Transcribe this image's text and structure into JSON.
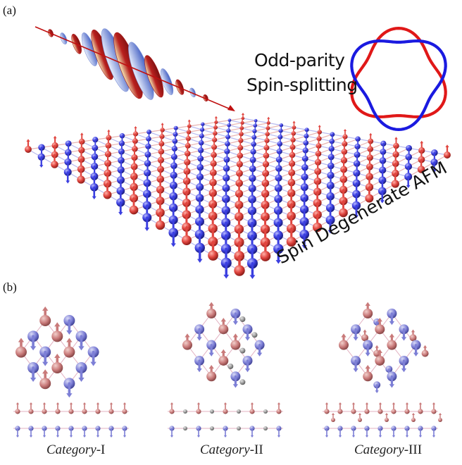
{
  "panel_a": {
    "label": "(a)",
    "annotation_line1": "Odd-parity",
    "annotation_line2": "Spin-splitting",
    "lattice_label": "Spin Degenerate AFM"
  },
  "panel_b": {
    "label": "(b)",
    "categories": [
      {
        "italic": "Category",
        "suffix": "-I"
      },
      {
        "italic": "Category",
        "suffix": "-II"
      },
      {
        "italic": "Category",
        "suffix": "-III"
      }
    ]
  },
  "colors": {
    "spin_up": "#e0453f",
    "spin_down": "#3b3fe0",
    "pale_up": "#c97a7a",
    "pale_down": "#7d7fd6",
    "nonmagnetic": "#9a9a9a",
    "pulse_red": "#a51c1c",
    "pulse_yellow": "#e8d99a",
    "pulse_blue": "#4a64c8",
    "contour_red": "#e01818",
    "contour_blue": "#1a1ae0"
  }
}
